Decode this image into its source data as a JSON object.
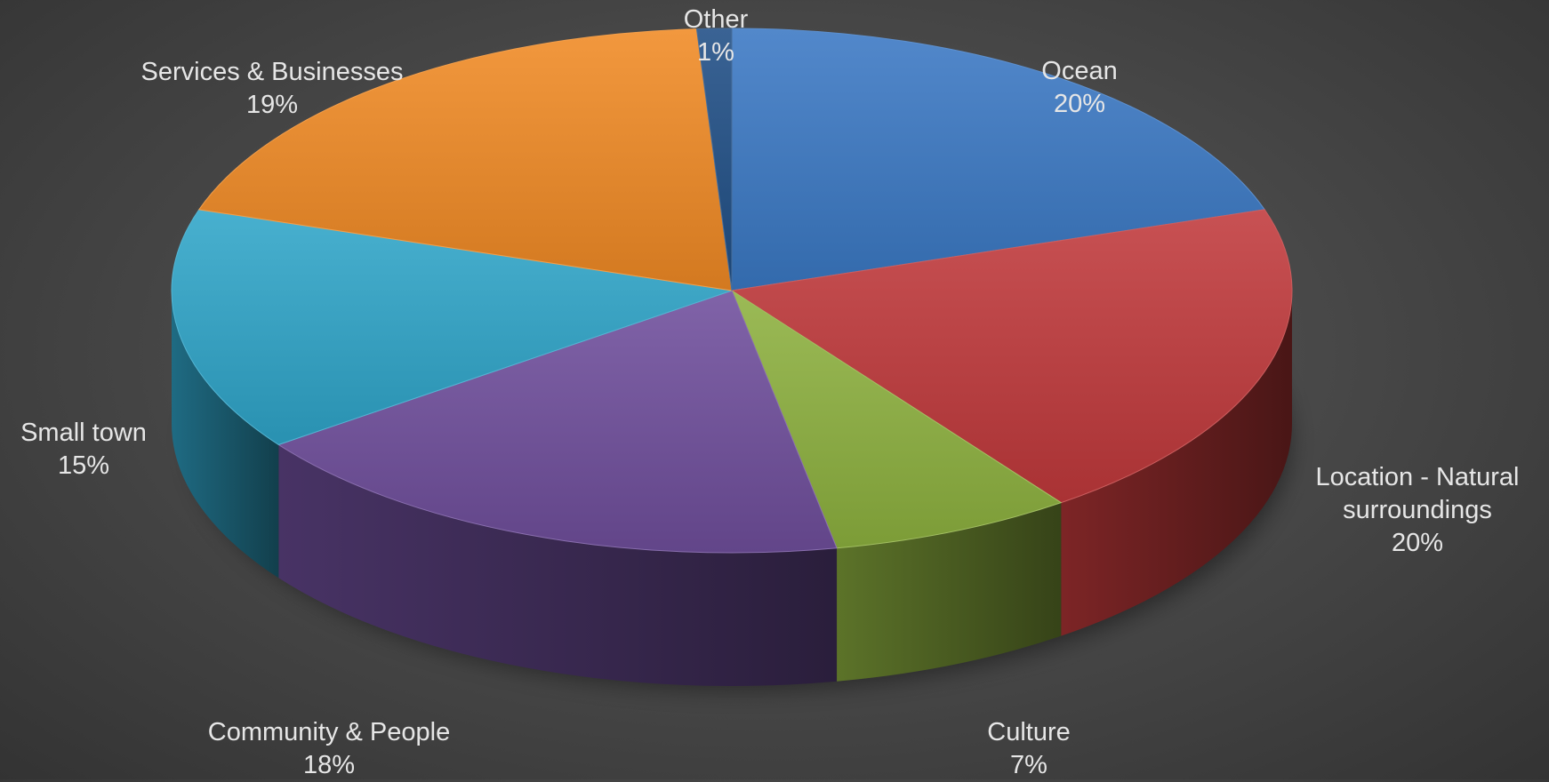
{
  "chart_data": {
    "type": "pie",
    "variant": "3d",
    "title": "",
    "slices": [
      {
        "name": "Ocean",
        "label_lines": [
          "Ocean"
        ],
        "value": 20,
        "pct_label": "20%",
        "color": "#3a78c4"
      },
      {
        "name": "Location - Natural surroundings",
        "label_lines": [
          "Location - Natural",
          "surroundings"
        ],
        "value": 20,
        "pct_label": "20%",
        "color": "#c0393b"
      },
      {
        "name": "Culture",
        "label_lines": [
          "Culture"
        ],
        "value": 7,
        "pct_label": "7%",
        "color": "#8db13f"
      },
      {
        "name": "Community & People",
        "label_lines": [
          "Community & People"
        ],
        "value": 18,
        "pct_label": "18%",
        "color": "#6f4e9c"
      },
      {
        "name": "Small town",
        "label_lines": [
          "Small town"
        ],
        "value": 15,
        "pct_label": "15%",
        "color": "#2fa5c9"
      },
      {
        "name": "Services & Businesses",
        "label_lines": [
          "Services & Businesses"
        ],
        "value": 19,
        "pct_label": "19%",
        "color": "#f08a24"
      },
      {
        "name": "Other",
        "label_lines": [
          "Other"
        ],
        "value": 1,
        "pct_label": "1%",
        "color": "#1f4e85"
      }
    ]
  }
}
